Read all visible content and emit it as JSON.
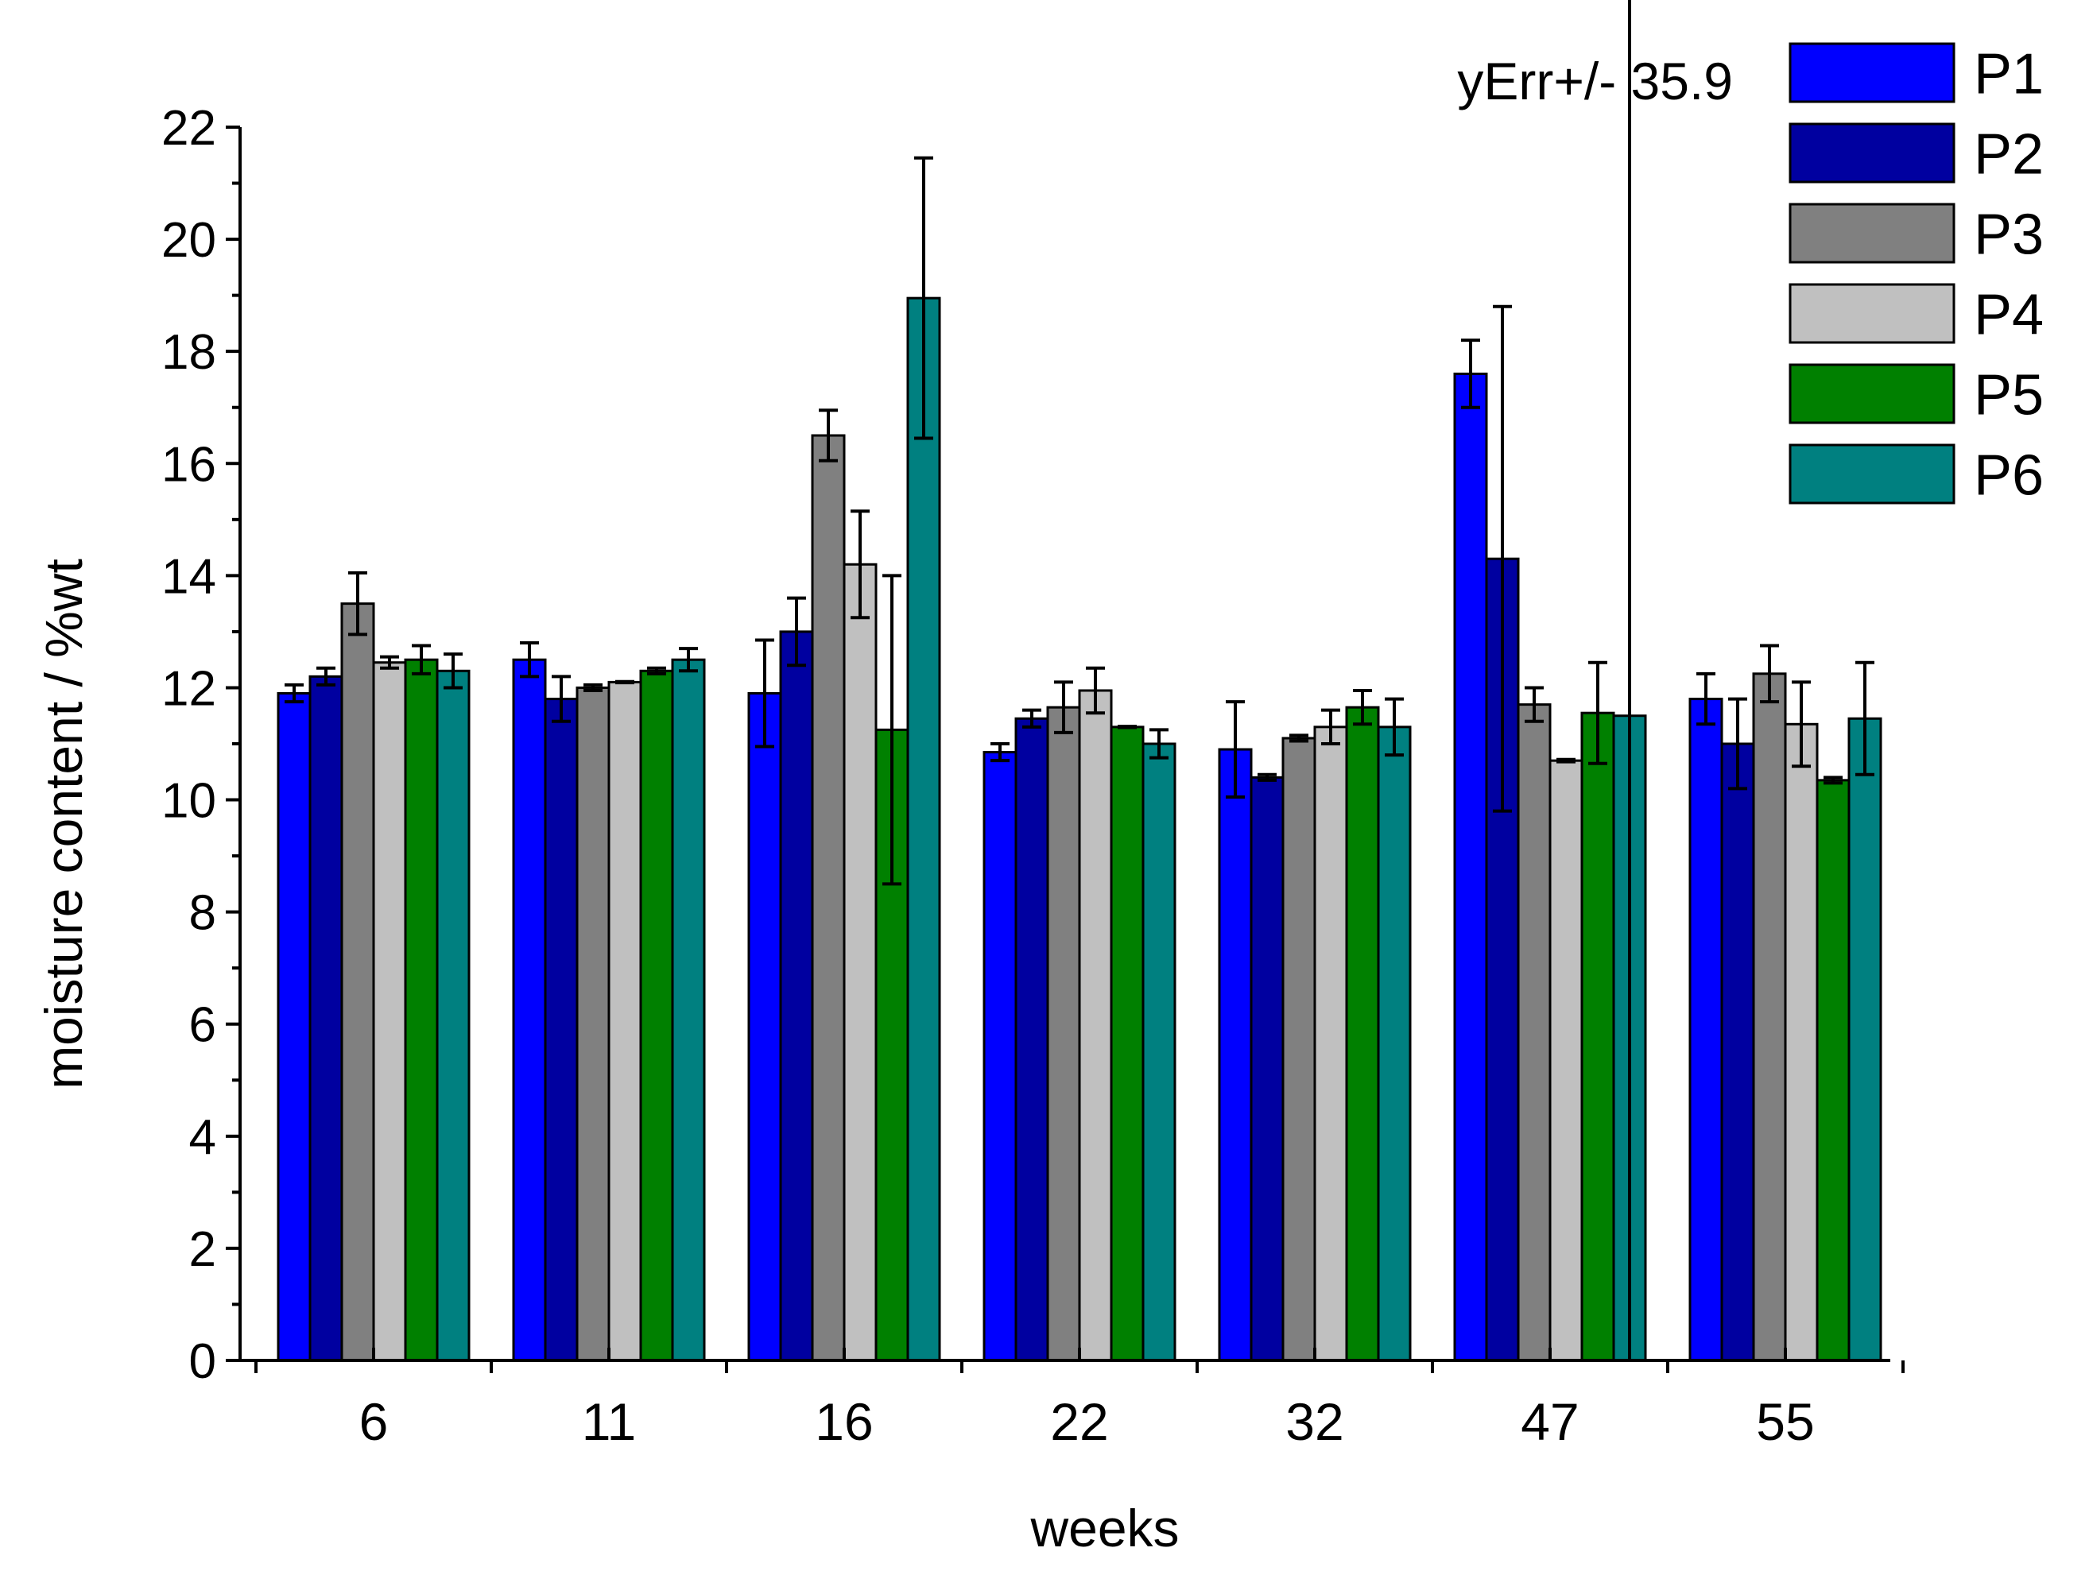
{
  "chart_data": {
    "type": "bar",
    "xlabel": "weeks",
    "ylabel": "moisture content / %wt",
    "ylim": [
      0,
      22
    ],
    "yticks": [
      0,
      2,
      4,
      6,
      8,
      10,
      12,
      14,
      16,
      18,
      20,
      22
    ],
    "categories": [
      "6",
      "11",
      "16",
      "22",
      "32",
      "47",
      "55"
    ],
    "legend_position": "top-right",
    "grid": false,
    "series": [
      {
        "name": "P1",
        "color": "#0000ff",
        "values": [
          11.9,
          12.5,
          11.9,
          10.85,
          10.9,
          17.6,
          11.8
        ],
        "errors": [
          0.15,
          0.3,
          0.95,
          0.15,
          0.85,
          0.6,
          0.45
        ]
      },
      {
        "name": "P2",
        "color": "#0000a0",
        "values": [
          12.2,
          11.8,
          13.0,
          11.45,
          10.4,
          14.3,
          11.0
        ],
        "errors": [
          0.15,
          0.4,
          0.6,
          0.15,
          0.05,
          4.5,
          0.8
        ]
      },
      {
        "name": "P3",
        "color": "#808080",
        "values": [
          13.5,
          12.0,
          16.5,
          11.65,
          11.1,
          11.7,
          12.25
        ],
        "errors": [
          0.55,
          0.05,
          0.45,
          0.45,
          0.05,
          0.3,
          0.5
        ]
      },
      {
        "name": "P4",
        "color": "#c0c0c0",
        "values": [
          12.45,
          12.1,
          14.2,
          11.95,
          11.3,
          10.7,
          11.35
        ],
        "errors": [
          0.1,
          0.01,
          0.95,
          0.4,
          0.3,
          0.02,
          0.75
        ]
      },
      {
        "name": "P5",
        "color": "#008000",
        "values": [
          12.5,
          12.3,
          11.25,
          11.3,
          11.65,
          11.55,
          10.35
        ],
        "errors": [
          0.25,
          0.05,
          2.75,
          0.01,
          0.3,
          0.9,
          0.05
        ]
      },
      {
        "name": "P6",
        "color": "#008080",
        "values": [
          12.3,
          12.5,
          18.95,
          11.0,
          11.3,
          11.5,
          11.45
        ],
        "errors": [
          0.3,
          0.2,
          2.5,
          0.25,
          0.5,
          35.9,
          1.0
        ]
      }
    ],
    "annotation": "yErr+/- 35.9"
  }
}
